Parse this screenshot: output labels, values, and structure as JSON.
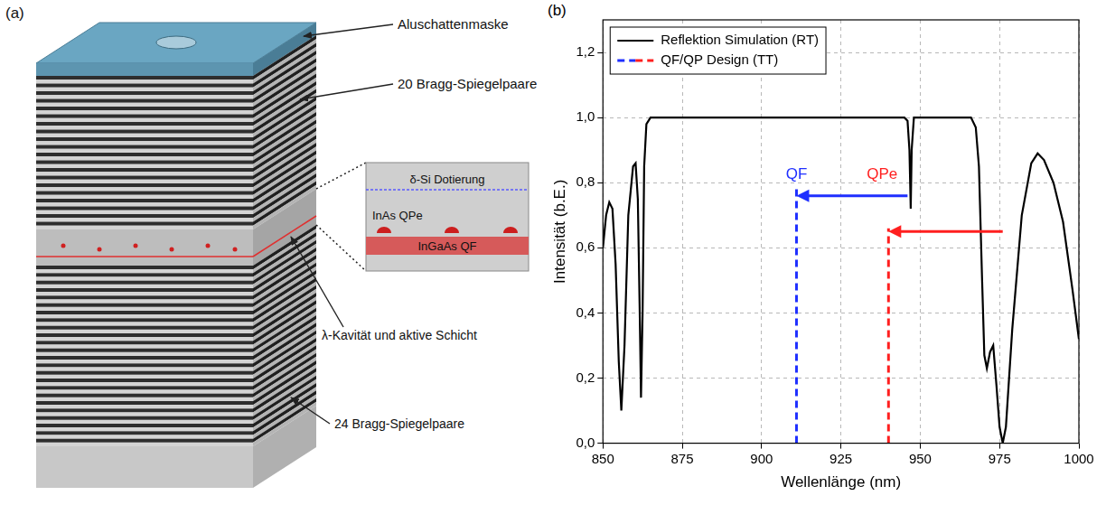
{
  "diagram": {
    "panel_label": "(a)",
    "labels": {
      "mask": "Aluschattenmaske",
      "top_mirror": "20 Bragg-Spiegelpaare",
      "cavity": "λ-Kavität und aktive Schicht",
      "bottom_mirror": "24 Bragg-Spiegelpaare"
    },
    "top_mirror_pairs": 20,
    "bottom_mirror_pairs": 24,
    "inset": {
      "doping": "δ-Si Dotierung",
      "dots": "InAs QPe",
      "well": "InGaAs QF"
    }
  },
  "chart_data": {
    "type": "line",
    "panel_label": "(b)",
    "x_label": "Wellenlänge (nm)",
    "y_label": "Intensität (b.E.)",
    "xlim": [
      850,
      1000
    ],
    "xticks": [
      850,
      875,
      900,
      925,
      950,
      975,
      1000
    ],
    "ylim": [
      0,
      1.3
    ],
    "yticks": [
      {
        "value": 0,
        "label": "0,0"
      },
      {
        "value": 0.2,
        "label": "0,2"
      },
      {
        "value": 0.4,
        "label": "0,4"
      },
      {
        "value": 0.6,
        "label": "0,6"
      },
      {
        "value": 0.8,
        "label": "0,8"
      },
      {
        "value": 1.0,
        "label": "1,0"
      },
      {
        "value": 1.2,
        "label": "1,2"
      }
    ],
    "grid": true,
    "legend": "top-left",
    "series": [
      {
        "name": "Reflektion Simulation (RT)",
        "type": "line",
        "color": "#000000",
        "line_style": "solid",
        "x": [
          850,
          851,
          852,
          853,
          854,
          855,
          855.8,
          856.8,
          858,
          859.5,
          860.3,
          861,
          861.6,
          862,
          862.5,
          863,
          863.7,
          865,
          900,
          945,
          946,
          946.6,
          947,
          947.3,
          948,
          966,
          967.5,
          968.5,
          969.5,
          970.2,
          971,
          972,
          973,
          974,
          975,
          976,
          977,
          979,
          982,
          985,
          987,
          989,
          992,
          995,
          998,
          1000
        ],
        "values": [
          0.6,
          0.7,
          0.74,
          0.72,
          0.55,
          0.25,
          0.1,
          0.3,
          0.7,
          0.85,
          0.86,
          0.75,
          0.4,
          0.14,
          0.4,
          0.85,
          0.98,
          1.0,
          1.0,
          1.0,
          0.99,
          0.9,
          0.72,
          0.9,
          1.0,
          1.0,
          0.97,
          0.85,
          0.5,
          0.27,
          0.23,
          0.28,
          0.3,
          0.18,
          0.05,
          0.0,
          0.05,
          0.35,
          0.7,
          0.86,
          0.89,
          0.87,
          0.8,
          0.68,
          0.47,
          0.32
        ]
      },
      {
        "name": "QF/QP Design (TT)",
        "type": "vline",
        "line_style": "dashed",
        "colors": [
          "#1f2fff",
          "#ff1f1f"
        ],
        "x": [
          911,
          940
        ],
        "values": [
          0.78,
          0.66
        ]
      }
    ],
    "annotations": [
      {
        "text": "QF",
        "x": 911,
        "y": 0.8,
        "color": "#1f2fff"
      },
      {
        "text": "QPe",
        "x": 938,
        "y": 0.8,
        "color": "#ff1f1f"
      }
    ],
    "arrows": [
      {
        "x_from": 946,
        "x_to": 911,
        "y": 0.76,
        "color": "#1f2fff"
      },
      {
        "x_from": 976,
        "x_to": 940,
        "y": 0.65,
        "color": "#ff1f1f"
      }
    ]
  }
}
